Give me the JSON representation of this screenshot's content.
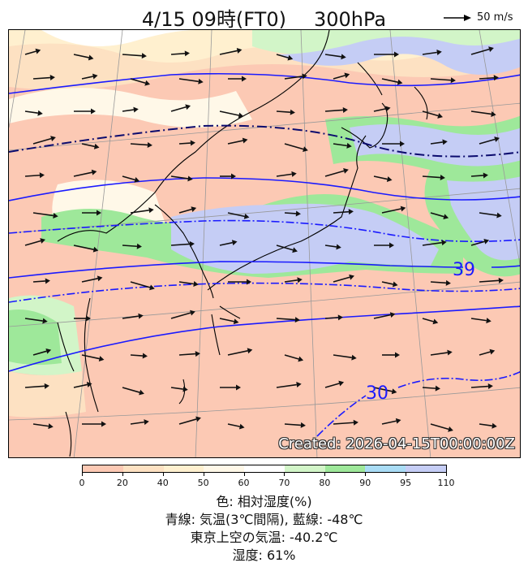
{
  "title": {
    "datetime": "4/15 09時(FT0)",
    "level": "300hPa"
  },
  "reference_vector": {
    "label": "50 m/s"
  },
  "created_stamp": "Created: 2026-04-15T00:00:00Z",
  "contour_labels": {
    "label_39": "39",
    "label_30": "30"
  },
  "colorbar": {
    "ticks": [
      "0",
      "20",
      "40",
      "50",
      "60",
      "70",
      "80",
      "90",
      "95",
      "110"
    ],
    "colors": [
      "#fcc9b4",
      "#fde1c2",
      "#fff0cf",
      "#fff8e8",
      "#ffffff",
      "#d2f5c8",
      "#9ee89a",
      "#a9dcf5",
      "#c5cdf5"
    ]
  },
  "legend": {
    "line1": "色: 相対湿度(%)",
    "line2": "青線: 気温(3℃間隔), 藍線: -48℃",
    "line3": "東京上空の気温: -40.2℃",
    "line4": "湿度: 61%"
  },
  "colors": {
    "temp_line": "#1a1aff",
    "temp_48_line": "#0b0b6e",
    "coast": "#000000",
    "grid": "#999999"
  }
}
